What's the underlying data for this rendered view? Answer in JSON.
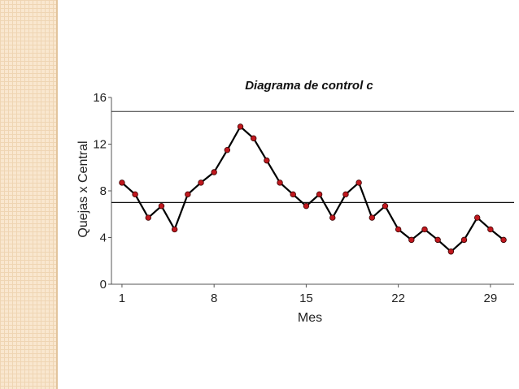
{
  "chart_data": {
    "type": "line",
    "title": "Diagrama de control c",
    "xlabel": "Mes",
    "ylabel": "Quejas x Central",
    "xlim": [
      0.2,
      30.8
    ],
    "ylim": [
      0,
      16
    ],
    "x_ticks": [
      "1",
      "8",
      "15",
      "22",
      "29"
    ],
    "x_tick_values": [
      1,
      8,
      15,
      22,
      29
    ],
    "y_ticks": [
      "0",
      "4",
      "8",
      "12",
      "16"
    ],
    "y_tick_values": [
      0,
      4,
      8,
      12,
      16
    ],
    "control_limits": {
      "ucl": 14.8,
      "center": 7
    },
    "series": [
      {
        "x": [
          1,
          2,
          3,
          4,
          5,
          6,
          7,
          8,
          9,
          10,
          11,
          12,
          13,
          14,
          15,
          16,
          17,
          18,
          19,
          20,
          21,
          22,
          23,
          24,
          25,
          26,
          27,
          28,
          29,
          30
        ],
        "values": [
          8.7,
          7.7,
          5.7,
          6.7,
          4.7,
          7.7,
          8.7,
          9.6,
          11.5,
          13.5,
          12.5,
          10.6,
          8.7,
          7.7,
          6.7,
          7.7,
          5.7,
          7.7,
          8.7,
          5.7,
          6.7,
          4.7,
          3.8,
          4.7,
          3.8,
          2.8,
          3.8,
          5.7,
          4.7,
          3.8
        ],
        "color": "#000000",
        "marker_color": "#c0181e"
      }
    ],
    "grid": false,
    "legend": "none"
  }
}
